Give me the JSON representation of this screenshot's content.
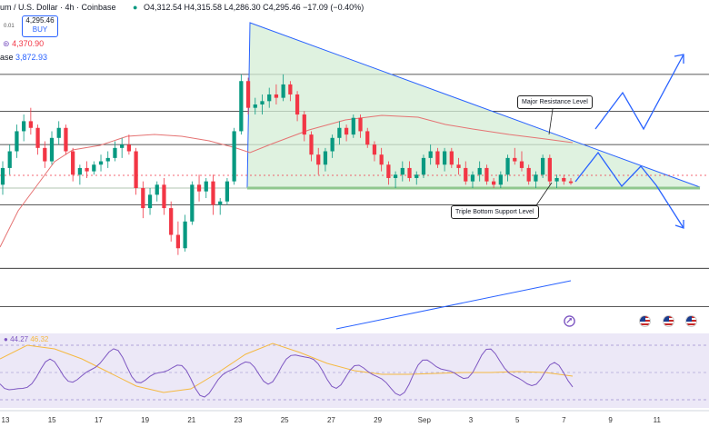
{
  "header": {
    "symbol": "um / U.S. Dollar · 4h · Coinbase",
    "ohlc": "O4,312.54  H4,315.58  L4,286.30  C4,295.46  −17.09 (−0.40%)",
    "price": "4,295.46",
    "buy_label": "BUY",
    "spread": "0.01",
    "indicator1_value": "4,370.90",
    "indicator2_label": "ase",
    "indicator2_value": "3,872.93"
  },
  "rsi_values": {
    "rsi": "44.27",
    "ma": "46.32"
  },
  "annotations": {
    "resistance": "Major Resistance Level",
    "support": "Triple Bottom Support Level"
  },
  "colors": {
    "up": "#089981",
    "down": "#f23645",
    "trendline": "#2962ff",
    "triangle_fill": "#d4edd6",
    "ma_line": "#e57373",
    "rsi_line": "#7e57c2",
    "rsi_ma": "#f5b941",
    "hline": "#222222"
  },
  "chart_data": {
    "type": "candlestick",
    "x_ticks": [
      "13",
      "15",
      "17",
      "19",
      "21",
      "23",
      "25",
      "27",
      "29",
      "Sep",
      "3",
      "5",
      "7",
      "9",
      "11"
    ],
    "horizontal_levels": [
      4620,
      4510,
      4410,
      4230,
      4040,
      3925
    ],
    "support_level": 4280,
    "candles_ohlc": [
      [
        4290,
        4360,
        4260,
        4340
      ],
      [
        4340,
        4410,
        4320,
        4390
      ],
      [
        4390,
        4470,
        4370,
        4450
      ],
      [
        4450,
        4500,
        4420,
        4480
      ],
      [
        4480,
        4520,
        4440,
        4460
      ],
      [
        4460,
        4470,
        4380,
        4400
      ],
      [
        4400,
        4420,
        4340,
        4360
      ],
      [
        4360,
        4450,
        4350,
        4430
      ],
      [
        4430,
        4480,
        4410,
        4460
      ],
      [
        4460,
        4470,
        4380,
        4390
      ],
      [
        4390,
        4400,
        4300,
        4320
      ],
      [
        4320,
        4350,
        4290,
        4340
      ],
      [
        4340,
        4360,
        4310,
        4330
      ],
      [
        4330,
        4360,
        4320,
        4350
      ],
      [
        4350,
        4380,
        4330,
        4360
      ],
      [
        4360,
        4390,
        4340,
        4370
      ],
      [
        4370,
        4420,
        4360,
        4400
      ],
      [
        4400,
        4430,
        4370,
        4410
      ],
      [
        4410,
        4440,
        4380,
        4390
      ],
      [
        4390,
        4400,
        4260,
        4280
      ],
      [
        4280,
        4300,
        4190,
        4220
      ],
      [
        4220,
        4280,
        4200,
        4260
      ],
      [
        4260,
        4300,
        4240,
        4290
      ],
      [
        4290,
        4310,
        4200,
        4220
      ],
      [
        4220,
        4240,
        4120,
        4140
      ],
      [
        4140,
        4180,
        4080,
        4100
      ],
      [
        4100,
        4200,
        4090,
        4180
      ],
      [
        4180,
        4300,
        4170,
        4290
      ],
      [
        4290,
        4320,
        4240,
        4270
      ],
      [
        4270,
        4310,
        4250,
        4300
      ],
      [
        4300,
        4320,
        4200,
        4230
      ],
      [
        4230,
        4250,
        4200,
        4240
      ],
      [
        4240,
        4310,
        4230,
        4300
      ],
      [
        4300,
        4460,
        4290,
        4450
      ],
      [
        4450,
        4620,
        4440,
        4600
      ],
      [
        4600,
        4610,
        4500,
        4520
      ],
      [
        4520,
        4550,
        4500,
        4530
      ],
      [
        4530,
        4560,
        4500,
        4540
      ],
      [
        4540,
        4580,
        4520,
        4560
      ],
      [
        4560,
        4590,
        4530,
        4550
      ],
      [
        4550,
        4620,
        4540,
        4590
      ],
      [
        4590,
        4600,
        4540,
        4560
      ],
      [
        4560,
        4570,
        4480,
        4500
      ],
      [
        4500,
        4510,
        4420,
        4440
      ],
      [
        4440,
        4450,
        4360,
        4380
      ],
      [
        4380,
        4400,
        4320,
        4350
      ],
      [
        4350,
        4400,
        4330,
        4390
      ],
      [
        4390,
        4440,
        4370,
        4430
      ],
      [
        4430,
        4480,
        4410,
        4460
      ],
      [
        4460,
        4470,
        4420,
        4440
      ],
      [
        4440,
        4500,
        4430,
        4490
      ],
      [
        4490,
        4500,
        4430,
        4450
      ],
      [
        4450,
        4460,
        4400,
        4410
      ],
      [
        4410,
        4420,
        4360,
        4380
      ],
      [
        4380,
        4400,
        4330,
        4350
      ],
      [
        4350,
        4360,
        4290,
        4310
      ],
      [
        4310,
        4330,
        4280,
        4320
      ],
      [
        4320,
        4360,
        4300,
        4340
      ],
      [
        4340,
        4360,
        4300,
        4310
      ],
      [
        4310,
        4330,
        4290,
        4320
      ],
      [
        4320,
        4380,
        4310,
        4370
      ],
      [
        4370,
        4410,
        4350,
        4390
      ],
      [
        4390,
        4400,
        4340,
        4350
      ],
      [
        4350,
        4400,
        4330,
        4390
      ],
      [
        4390,
        4400,
        4340,
        4350
      ],
      [
        4350,
        4370,
        4320,
        4340
      ],
      [
        4340,
        4360,
        4290,
        4300
      ],
      [
        4300,
        4330,
        4280,
        4320
      ],
      [
        4320,
        4360,
        4300,
        4340
      ],
      [
        4340,
        4350,
        4290,
        4300
      ],
      [
        4300,
        4310,
        4280,
        4290
      ],
      [
        4290,
        4330,
        4280,
        4320
      ],
      [
        4320,
        4380,
        4300,
        4370
      ],
      [
        4370,
        4400,
        4350,
        4360
      ],
      [
        4360,
        4390,
        4330,
        4340
      ],
      [
        4340,
        4350,
        4290,
        4300
      ],
      [
        4300,
        4330,
        4280,
        4320
      ],
      [
        4320,
        4380,
        4310,
        4370
      ],
      [
        4370,
        4380,
        4290,
        4300
      ],
      [
        4300,
        4320,
        4280,
        4310
      ],
      [
        4310,
        4320,
        4290,
        4300
      ],
      [
        4300,
        4310,
        4290,
        4295
      ]
    ]
  }
}
